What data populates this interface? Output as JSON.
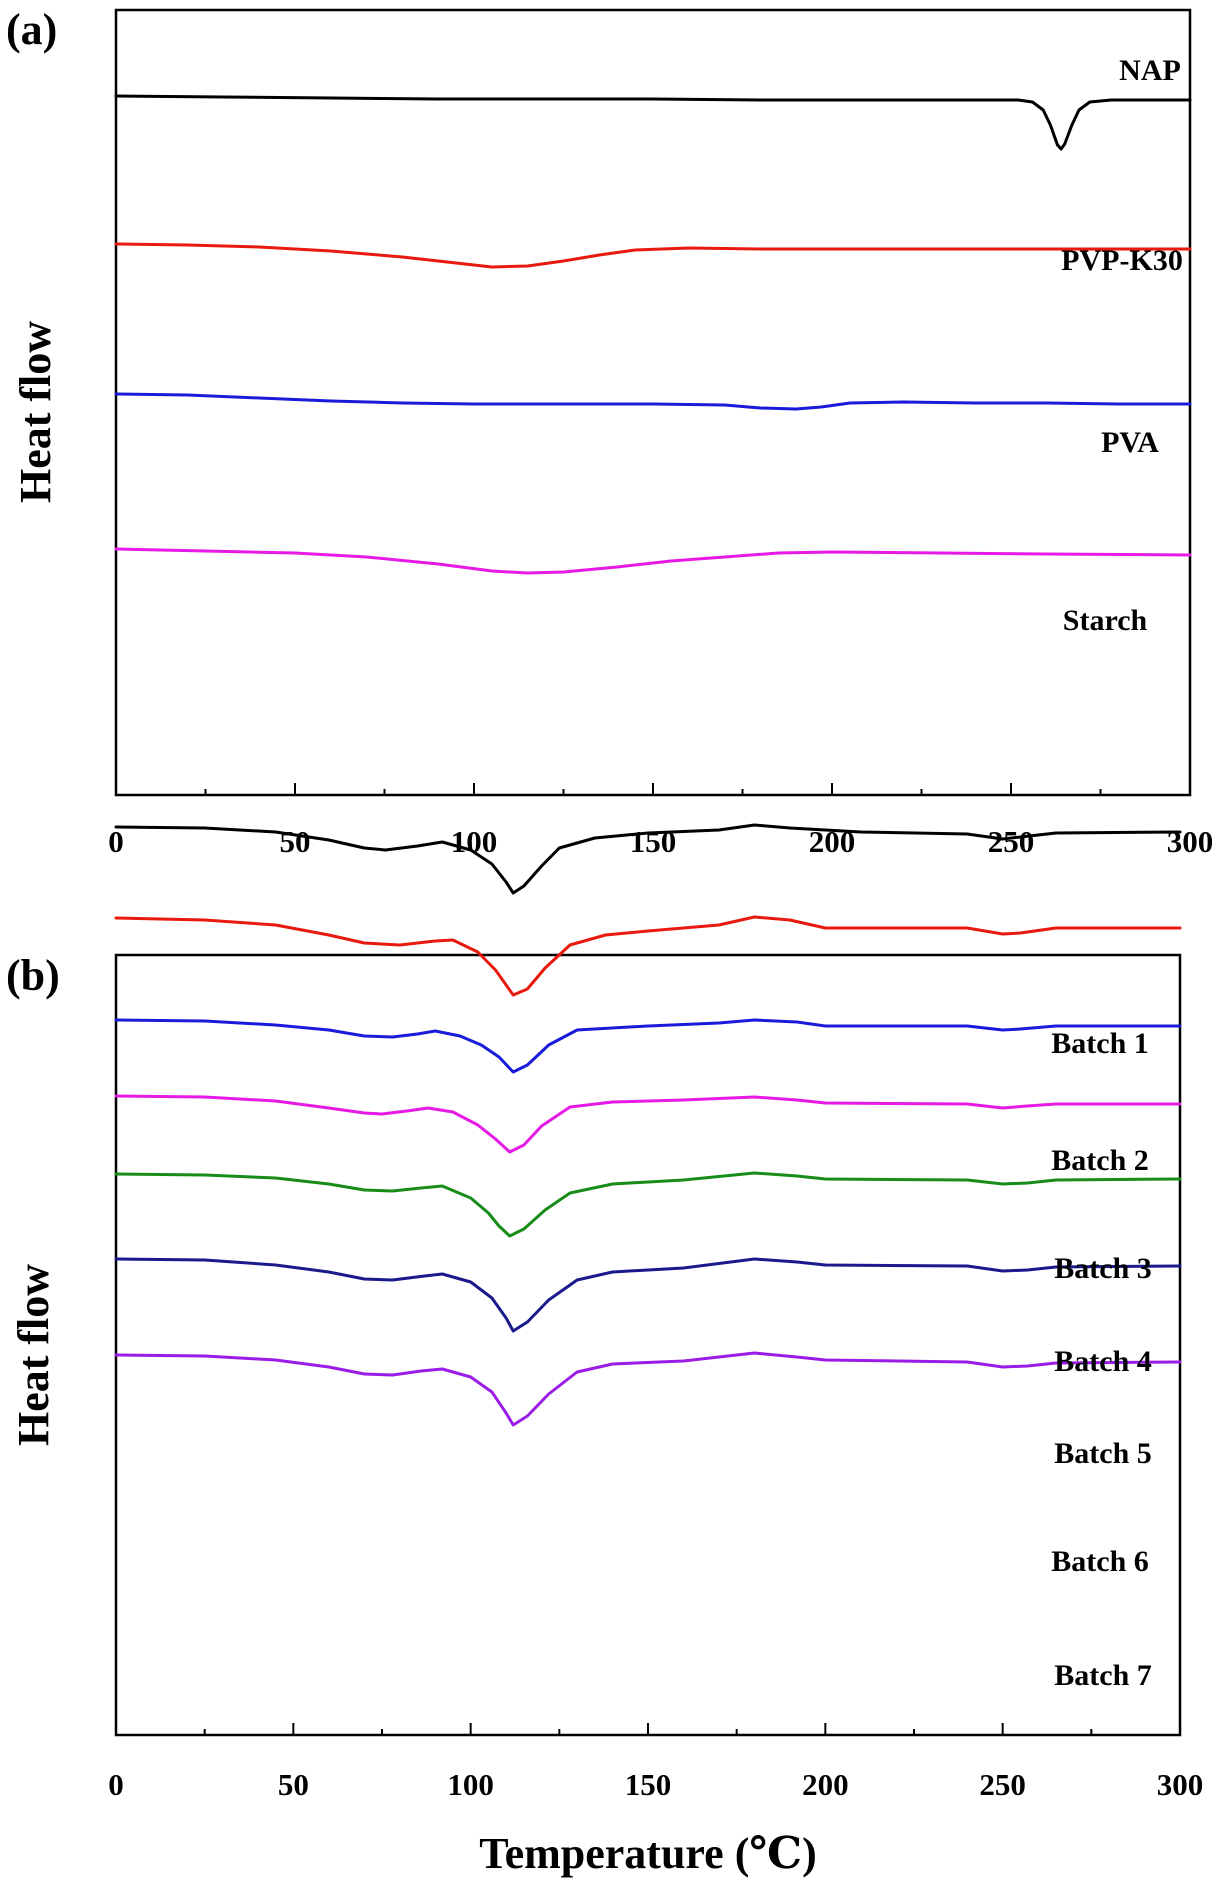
{
  "chart_data": [
    {
      "panel": "(a)",
      "type": "line",
      "title": "",
      "xlabel": "",
      "ylabel": "Heat flow",
      "xlim": [
        0,
        300
      ],
      "x_ticks": [
        0,
        50,
        100,
        150,
        200,
        250,
        300
      ],
      "grid": false,
      "legend": "labels placed near each curve on the right",
      "y_units": "arbitrary (stacked curves, no y tick labels)",
      "series": [
        {
          "name": "NAP",
          "color": "#000000",
          "points": [
            [
              0,
              96
            ],
            [
              30,
              97
            ],
            [
              60,
              98
            ],
            [
              90,
              99
            ],
            [
              120,
              99
            ],
            [
              150,
              99
            ],
            [
              180,
              100
            ],
            [
              210,
              100
            ],
            [
              240,
              100
            ],
            [
              252,
              100
            ],
            [
              256,
              102
            ],
            [
              259,
              110
            ],
            [
              261,
              125
            ],
            [
              263,
              145
            ],
            [
              264,
              149
            ],
            [
              265,
              144
            ],
            [
              267,
              125
            ],
            [
              269,
              110
            ],
            [
              272,
              102
            ],
            [
              278,
              100
            ],
            [
              300,
              100
            ]
          ]
        },
        {
          "name": "PVP-K30",
          "color": "#e8190e",
          "points": [
            [
              0,
              244
            ],
            [
              20,
              245
            ],
            [
              40,
              247
            ],
            [
              60,
              251
            ],
            [
              80,
              257
            ],
            [
              95,
              263
            ],
            [
              105,
              267
            ],
            [
              115,
              266
            ],
            [
              125,
              261
            ],
            [
              135,
              255
            ],
            [
              145,
              250
            ],
            [
              160,
              248
            ],
            [
              180,
              249
            ],
            [
              200,
              249
            ],
            [
              220,
              249
            ],
            [
              240,
              249
            ],
            [
              260,
              249
            ],
            [
              280,
              249
            ],
            [
              300,
              249
            ]
          ]
        },
        {
          "name": "PVA",
          "color": "#1a1adb",
          "points": [
            [
              0,
              394
            ],
            [
              20,
              395
            ],
            [
              40,
              398
            ],
            [
              60,
              401
            ],
            [
              80,
              403
            ],
            [
              100,
              404
            ],
            [
              120,
              404
            ],
            [
              150,
              404
            ],
            [
              170,
              405
            ],
            [
              180,
              408
            ],
            [
              190,
              409
            ],
            [
              197,
              407
            ],
            [
              205,
              403
            ],
            [
              220,
              402
            ],
            [
              240,
              403
            ],
            [
              260,
              403
            ],
            [
              280,
              404
            ],
            [
              300,
              404
            ]
          ]
        },
        {
          "name": "Starch",
          "color": "#e619e6",
          "points": [
            [
              0,
              549
            ],
            [
              25,
              551
            ],
            [
              50,
              553
            ],
            [
              70,
              557
            ],
            [
              90,
              564
            ],
            [
              105,
              571
            ],
            [
              115,
              573
            ],
            [
              125,
              572
            ],
            [
              140,
              567
            ],
            [
              155,
              561
            ],
            [
              170,
              557
            ],
            [
              185,
              553
            ],
            [
              200,
              552
            ],
            [
              230,
              553
            ],
            [
              260,
              554
            ],
            [
              300,
              555
            ]
          ]
        }
      ]
    },
    {
      "panel": "(b)",
      "type": "line",
      "title": "",
      "xlabel": "Temperature (℃)",
      "ylabel": "Heat flow",
      "xlim": [
        0,
        300
      ],
      "x_ticks": [
        0,
        50,
        100,
        150,
        200,
        250,
        300
      ],
      "grid": false,
      "legend": "labels placed near each curve on the right",
      "y_units": "arbitrary (stacked curves, no y tick labels)",
      "series": [
        {
          "name": "Batch 1",
          "color": "#000000",
          "points": [
            [
              0,
              827
            ],
            [
              25,
              828
            ],
            [
              45,
              832
            ],
            [
              60,
              840
            ],
            [
              70,
              848
            ],
            [
              76,
              850
            ],
            [
              85,
              846
            ],
            [
              92,
              842
            ],
            [
              100,
              850
            ],
            [
              106,
              864
            ],
            [
              110,
              882
            ],
            [
              112,
              893
            ],
            [
              115,
              886
            ],
            [
              120,
              866
            ],
            [
              125,
              848
            ],
            [
              135,
              838
            ],
            [
              150,
              833
            ],
            [
              170,
              830
            ],
            [
              180,
              825
            ],
            [
              190,
              828
            ],
            [
              210,
              832
            ],
            [
              240,
              834
            ],
            [
              250,
              839
            ],
            [
              255,
              837
            ],
            [
              265,
              833
            ],
            [
              300,
              832
            ]
          ]
        },
        {
          "name": "Batch 2",
          "color": "#e8190e",
          "points": [
            [
              0,
              918
            ],
            [
              25,
              920
            ],
            [
              45,
              925
            ],
            [
              60,
              935
            ],
            [
              70,
              943
            ],
            [
              80,
              945
            ],
            [
              90,
              941
            ],
            [
              95,
              940
            ],
            [
              102,
              952
            ],
            [
              107,
              970
            ],
            [
              110,
              985
            ],
            [
              112,
              995
            ],
            [
              116,
              989
            ],
            [
              121,
              968
            ],
            [
              128,
              945
            ],
            [
              138,
              935
            ],
            [
              150,
              931
            ],
            [
              170,
              925
            ],
            [
              180,
              917
            ],
            [
              190,
              920
            ],
            [
              200,
              928
            ],
            [
              240,
              928
            ],
            [
              250,
              934
            ],
            [
              255,
              933
            ],
            [
              265,
              928
            ],
            [
              300,
              928
            ]
          ]
        },
        {
          "name": "Batch 3",
          "color": "#1a1adb",
          "points": [
            [
              0,
              1020
            ],
            [
              25,
              1021
            ],
            [
              45,
              1025
            ],
            [
              60,
              1030
            ],
            [
              70,
              1036
            ],
            [
              78,
              1037
            ],
            [
              85,
              1034
            ],
            [
              90,
              1031
            ],
            [
              97,
              1036
            ],
            [
              103,
              1045
            ],
            [
              108,
              1057
            ],
            [
              112,
              1072
            ],
            [
              116,
              1065
            ],
            [
              122,
              1045
            ],
            [
              130,
              1030
            ],
            [
              150,
              1026
            ],
            [
              170,
              1023
            ],
            [
              180,
              1020
            ],
            [
              192,
              1022
            ],
            [
              200,
              1026
            ],
            [
              240,
              1026
            ],
            [
              250,
              1030
            ],
            [
              255,
              1029
            ],
            [
              265,
              1026
            ],
            [
              300,
              1026
            ]
          ]
        },
        {
          "name": "Batch 4",
          "color": "#e619e6",
          "points": [
            [
              0,
              1096
            ],
            [
              25,
              1097
            ],
            [
              45,
              1101
            ],
            [
              60,
              1108
            ],
            [
              70,
              1113
            ],
            [
              75,
              1114
            ],
            [
              82,
              1111
            ],
            [
              88,
              1108
            ],
            [
              95,
              1112
            ],
            [
              102,
              1125
            ],
            [
              107,
              1139
            ],
            [
              111,
              1152
            ],
            [
              115,
              1145
            ],
            [
              120,
              1126
            ],
            [
              128,
              1107
            ],
            [
              140,
              1102
            ],
            [
              160,
              1100
            ],
            [
              180,
              1097
            ],
            [
              192,
              1100
            ],
            [
              200,
              1103
            ],
            [
              240,
              1104
            ],
            [
              250,
              1108
            ],
            [
              257,
              1106
            ],
            [
              265,
              1104
            ],
            [
              300,
              1104
            ]
          ]
        },
        {
          "name": "Batch 5",
          "color": "#188c18",
          "points": [
            [
              0,
              1174
            ],
            [
              25,
              1175
            ],
            [
              45,
              1178
            ],
            [
              60,
              1184
            ],
            [
              70,
              1190
            ],
            [
              78,
              1191
            ],
            [
              86,
              1188
            ],
            [
              92,
              1186
            ],
            [
              100,
              1198
            ],
            [
              105,
              1213
            ],
            [
              108,
              1226
            ],
            [
              111,
              1236
            ],
            [
              115,
              1229
            ],
            [
              121,
              1210
            ],
            [
              128,
              1193
            ],
            [
              140,
              1184
            ],
            [
              160,
              1180
            ],
            [
              180,
              1173
            ],
            [
              192,
              1176
            ],
            [
              200,
              1179
            ],
            [
              240,
              1180
            ],
            [
              250,
              1184
            ],
            [
              257,
              1183
            ],
            [
              265,
              1180
            ],
            [
              300,
              1179
            ]
          ]
        },
        {
          "name": "Batch 6",
          "color": "#1a1a8c",
          "points": [
            [
              0,
              1259
            ],
            [
              25,
              1260
            ],
            [
              45,
              1265
            ],
            [
              60,
              1272
            ],
            [
              70,
              1279
            ],
            [
              78,
              1280
            ],
            [
              87,
              1276
            ],
            [
              92,
              1274
            ],
            [
              100,
              1282
            ],
            [
              106,
              1298
            ],
            [
              110,
              1318
            ],
            [
              112,
              1331
            ],
            [
              116,
              1322
            ],
            [
              122,
              1300
            ],
            [
              130,
              1280
            ],
            [
              140,
              1272
            ],
            [
              160,
              1268
            ],
            [
              180,
              1259
            ],
            [
              192,
              1262
            ],
            [
              200,
              1265
            ],
            [
              240,
              1266
            ],
            [
              250,
              1271
            ],
            [
              257,
              1270
            ],
            [
              265,
              1267
            ],
            [
              300,
              1266
            ]
          ]
        },
        {
          "name": "Batch 7",
          "color": "#9b1ce6",
          "points": [
            [
              0,
              1355
            ],
            [
              25,
              1356
            ],
            [
              45,
              1360
            ],
            [
              60,
              1367
            ],
            [
              70,
              1374
            ],
            [
              78,
              1375
            ],
            [
              86,
              1371
            ],
            [
              92,
              1369
            ],
            [
              100,
              1377
            ],
            [
              106,
              1392
            ],
            [
              110,
              1413
            ],
            [
              112,
              1425
            ],
            [
              116,
              1416
            ],
            [
              122,
              1394
            ],
            [
              130,
              1372
            ],
            [
              140,
              1364
            ],
            [
              160,
              1361
            ],
            [
              180,
              1353
            ],
            [
              192,
              1357
            ],
            [
              200,
              1360
            ],
            [
              240,
              1362
            ],
            [
              250,
              1367
            ],
            [
              257,
              1366
            ],
            [
              265,
              1363
            ],
            [
              300,
              1362
            ]
          ]
        }
      ]
    }
  ]
}
